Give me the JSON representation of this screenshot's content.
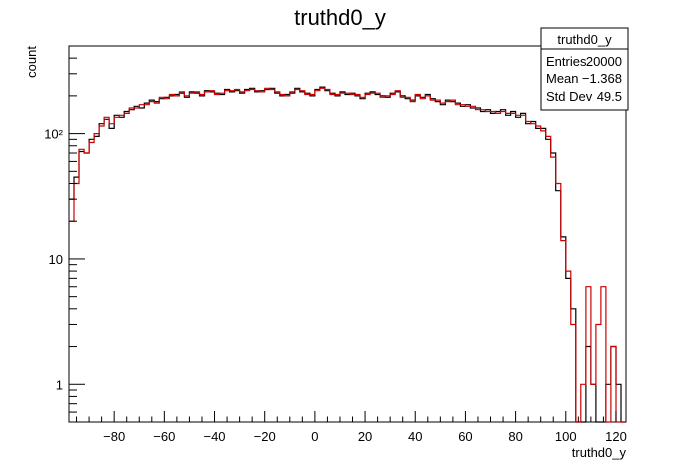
{
  "chart_data": {
    "type": "histogram",
    "title": "truthd0_y",
    "xlabel": "truthd0_y",
    "ylabel": "count",
    "xlim": [
      -98,
      124
    ],
    "ylim": [
      0.5,
      500
    ],
    "y_scale": "log",
    "x_ticks": [
      -80,
      -60,
      -40,
      -20,
      0,
      20,
      40,
      60,
      80,
      100,
      120
    ],
    "x_tick_labels": [
      "−80",
      "−60",
      "−40",
      "−20",
      "0",
      "20",
      "40",
      "60",
      "80",
      "100",
      "120"
    ],
    "y_major_ticks": [
      1,
      10,
      100
    ],
    "y_tick_labels": [
      "1",
      "10",
      "10²"
    ],
    "bin_width": 2,
    "x_start": -98,
    "series": [
      {
        "color": "#000000",
        "values": [
          30,
          45,
          72,
          70,
          90,
          95,
          120,
          130,
          110,
          140,
          135,
          150,
          155,
          165,
          160,
          175,
          185,
          180,
          190,
          195,
          200,
          205,
          210,
          195,
          215,
          210,
          200,
          220,
          215,
          210,
          205,
          225,
          215,
          220,
          210,
          225,
          230,
          215,
          220,
          225,
          230,
          210,
          200,
          205,
          210,
          230,
          215,
          210,
          200,
          225,
          235,
          220,
          210,
          200,
          215,
          205,
          210,
          200,
          190,
          210,
          215,
          205,
          200,
          195,
          210,
          215,
          200,
          190,
          185,
          200,
          195,
          205,
          190,
          180,
          170,
          185,
          180,
          175,
          165,
          170,
          160,
          160,
          150,
          155,
          145,
          150,
          155,
          140,
          150,
          135,
          145,
          120,
          125,
          110,
          110,
          90,
          70,
          35,
          15,
          7,
          4,
          0,
          0,
          2,
          1,
          0,
          0,
          1,
          2,
          1,
          0
        ]
      },
      {
        "color": "#cc0000",
        "values": [
          20,
          40,
          75,
          70,
          85,
          100,
          115,
          135,
          120,
          135,
          140,
          145,
          160,
          160,
          170,
          170,
          180,
          175,
          195,
          190,
          205,
          200,
          215,
          200,
          210,
          215,
          205,
          215,
          220,
          205,
          210,
          220,
          220,
          225,
          215,
          220,
          225,
          220,
          215,
          230,
          225,
          215,
          205,
          200,
          215,
          225,
          220,
          205,
          205,
          220,
          230,
          225,
          205,
          205,
          210,
          210,
          205,
          205,
          195,
          205,
          210,
          210,
          195,
          200,
          205,
          220,
          195,
          195,
          180,
          205,
          190,
          200,
          185,
          185,
          175,
          180,
          185,
          170,
          170,
          165,
          165,
          155,
          155,
          150,
          150,
          145,
          150,
          145,
          145,
          140,
          140,
          125,
          120,
          115,
          105,
          95,
          65,
          40,
          14,
          8,
          3,
          0,
          1,
          6,
          1,
          3,
          6,
          0,
          2,
          0,
          0
        ]
      }
    ],
    "legend": {
      "title": "truthd0_y",
      "rows": [
        {
          "label": "Entries",
          "value": "20000"
        },
        {
          "label": "Mean",
          "value": "−1.368"
        },
        {
          "label": "Std Dev",
          "value": "49.5"
        }
      ]
    }
  }
}
